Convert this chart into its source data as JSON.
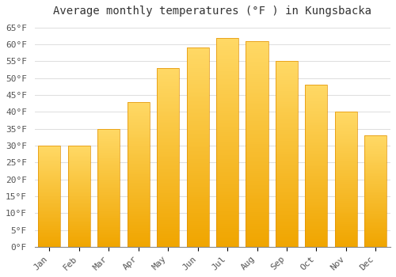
{
  "title": "Average monthly temperatures (°F ) in Kungsbacka",
  "months": [
    "Jan",
    "Feb",
    "Mar",
    "Apr",
    "May",
    "Jun",
    "Jul",
    "Aug",
    "Sep",
    "Oct",
    "Nov",
    "Dec"
  ],
  "values": [
    30,
    30,
    35,
    43,
    53,
    59,
    62,
    61,
    55,
    48,
    40,
    33
  ],
  "bar_color_top": "#FFD966",
  "bar_color_bottom": "#F0A500",
  "bar_edge_color": "#E09000",
  "background_color": "#FFFFFF",
  "grid_color": "#DDDDDD",
  "ylim": [
    0,
    67
  ],
  "yticks": [
    0,
    5,
    10,
    15,
    20,
    25,
    30,
    35,
    40,
    45,
    50,
    55,
    60,
    65
  ],
  "title_fontsize": 10,
  "tick_fontsize": 8,
  "font_family": "monospace",
  "bar_width": 0.75
}
